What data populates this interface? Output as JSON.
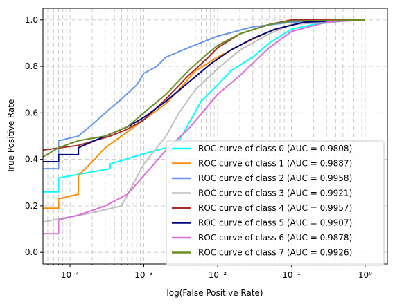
{
  "chart_data": {
    "type": "line",
    "xlabel": "log(False Positive Rate)",
    "ylabel": "True Positive Rate",
    "xscale": "log",
    "xlim": [
      4.3e-05,
      2.0
    ],
    "ylim": [
      -0.05,
      1.05
    ],
    "grid": true,
    "legend_position": "lower-right",
    "x_tick_labels": [
      "10⁻⁴",
      "10⁻³",
      "10⁻²",
      "10⁻¹",
      "10⁰"
    ],
    "y_tick_labels": [
      "0.0",
      "0.2",
      "0.4",
      "0.6",
      "0.8",
      "1.0"
    ],
    "series": [
      {
        "name": "ROC curve of class 0 (AUC = 0.9808)",
        "color": "#00ffff",
        "x": [
          4.3e-05,
          7e-05,
          7e-05,
          0.00035,
          0.00035,
          0.0009,
          0.002,
          0.003,
          0.004,
          0.006,
          0.01,
          0.015,
          0.03,
          0.05,
          0.1,
          0.2,
          0.5,
          1.0
        ],
        "y": [
          0.26,
          0.26,
          0.32,
          0.36,
          0.38,
          0.42,
          0.45,
          0.48,
          0.55,
          0.65,
          0.72,
          0.78,
          0.84,
          0.9,
          0.96,
          0.98,
          0.995,
          1.0
        ]
      },
      {
        "name": "ROC curve of class 1 (AUC = 0.9887)",
        "color": "#ff8c00",
        "x": [
          4.3e-05,
          7e-05,
          7e-05,
          0.00013,
          0.00013,
          0.0002,
          0.0003,
          0.0005,
          0.001,
          0.002,
          0.003,
          0.005,
          0.01,
          0.02,
          0.05,
          0.1,
          0.3,
          1.0
        ],
        "y": [
          0.19,
          0.19,
          0.23,
          0.25,
          0.33,
          0.39,
          0.45,
          0.5,
          0.57,
          0.64,
          0.7,
          0.78,
          0.84,
          0.89,
          0.95,
          0.98,
          0.995,
          1.0
        ]
      },
      {
        "name": "ROC curve of class 2 (AUC = 0.9958)",
        "color": "#6495ed",
        "x": [
          4.3e-05,
          7e-05,
          7e-05,
          0.00013,
          0.0002,
          0.0003,
          0.0005,
          0.0008,
          0.001,
          0.0015,
          0.002,
          0.004,
          0.01,
          0.03,
          0.1,
          1.0
        ],
        "y": [
          0.36,
          0.36,
          0.48,
          0.5,
          0.55,
          0.6,
          0.66,
          0.72,
          0.77,
          0.8,
          0.84,
          0.88,
          0.93,
          0.97,
          0.99,
          1.0
        ]
      },
      {
        "name": "ROC curve of class 3 (AUC = 0.9921)",
        "color": "#bebebe",
        "x": [
          4.3e-05,
          9e-05,
          0.0002,
          0.0005,
          0.001,
          0.002,
          0.003,
          0.005,
          0.01,
          0.02,
          0.05,
          0.1,
          1.0
        ],
        "y": [
          0.13,
          0.15,
          0.17,
          0.2,
          0.38,
          0.5,
          0.6,
          0.7,
          0.79,
          0.87,
          0.94,
          0.98,
          1.0
        ]
      },
      {
        "name": "ROC curve of class 4 (AUC = 0.9957)",
        "color": "#a52a2a",
        "x": [
          4.3e-05,
          0.00013,
          0.00035,
          0.0006,
          0.001,
          0.002,
          0.004,
          0.007,
          0.01,
          0.02,
          0.05,
          0.1,
          1.0
        ],
        "y": [
          0.44,
          0.46,
          0.5,
          0.53,
          0.57,
          0.66,
          0.76,
          0.83,
          0.88,
          0.94,
          0.98,
          1.0,
          1.0
        ]
      },
      {
        "name": "ROC curve of class 5 (AUC = 0.9907)",
        "color": "#000080",
        "x": [
          4.3e-05,
          7e-05,
          7e-05,
          0.00013,
          0.00013,
          0.0003,
          0.0006,
          0.001,
          0.002,
          0.004,
          0.008,
          0.015,
          0.03,
          0.06,
          0.15,
          1.0
        ],
        "y": [
          0.39,
          0.39,
          0.42,
          0.42,
          0.45,
          0.5,
          0.54,
          0.58,
          0.65,
          0.73,
          0.81,
          0.87,
          0.92,
          0.96,
          0.99,
          1.0
        ]
      },
      {
        "name": "ROC curve of class 6 (AUC = 0.9878)",
        "color": "#da70d6",
        "x": [
          4.3e-05,
          7e-05,
          7e-05,
          0.00013,
          0.0003,
          0.0006,
          0.001,
          0.002,
          0.004,
          0.007,
          0.01,
          0.02,
          0.05,
          0.1,
          0.3,
          1.0
        ],
        "y": [
          0.08,
          0.08,
          0.14,
          0.16,
          0.2,
          0.25,
          0.33,
          0.44,
          0.53,
          0.62,
          0.68,
          0.76,
          0.88,
          0.95,
          0.99,
          1.0
        ]
      },
      {
        "name": "ROC curve of class 7 (AUC = 0.9926)",
        "color": "#6b8e23",
        "x": [
          4.3e-05,
          7e-05,
          0.00013,
          0.0003,
          0.0006,
          0.001,
          0.002,
          0.004,
          0.007,
          0.01,
          0.02,
          0.05,
          0.1,
          1.0
        ],
        "y": [
          0.41,
          0.45,
          0.48,
          0.5,
          0.54,
          0.6,
          0.68,
          0.78,
          0.85,
          0.89,
          0.94,
          0.98,
          0.995,
          1.0
        ]
      }
    ]
  }
}
